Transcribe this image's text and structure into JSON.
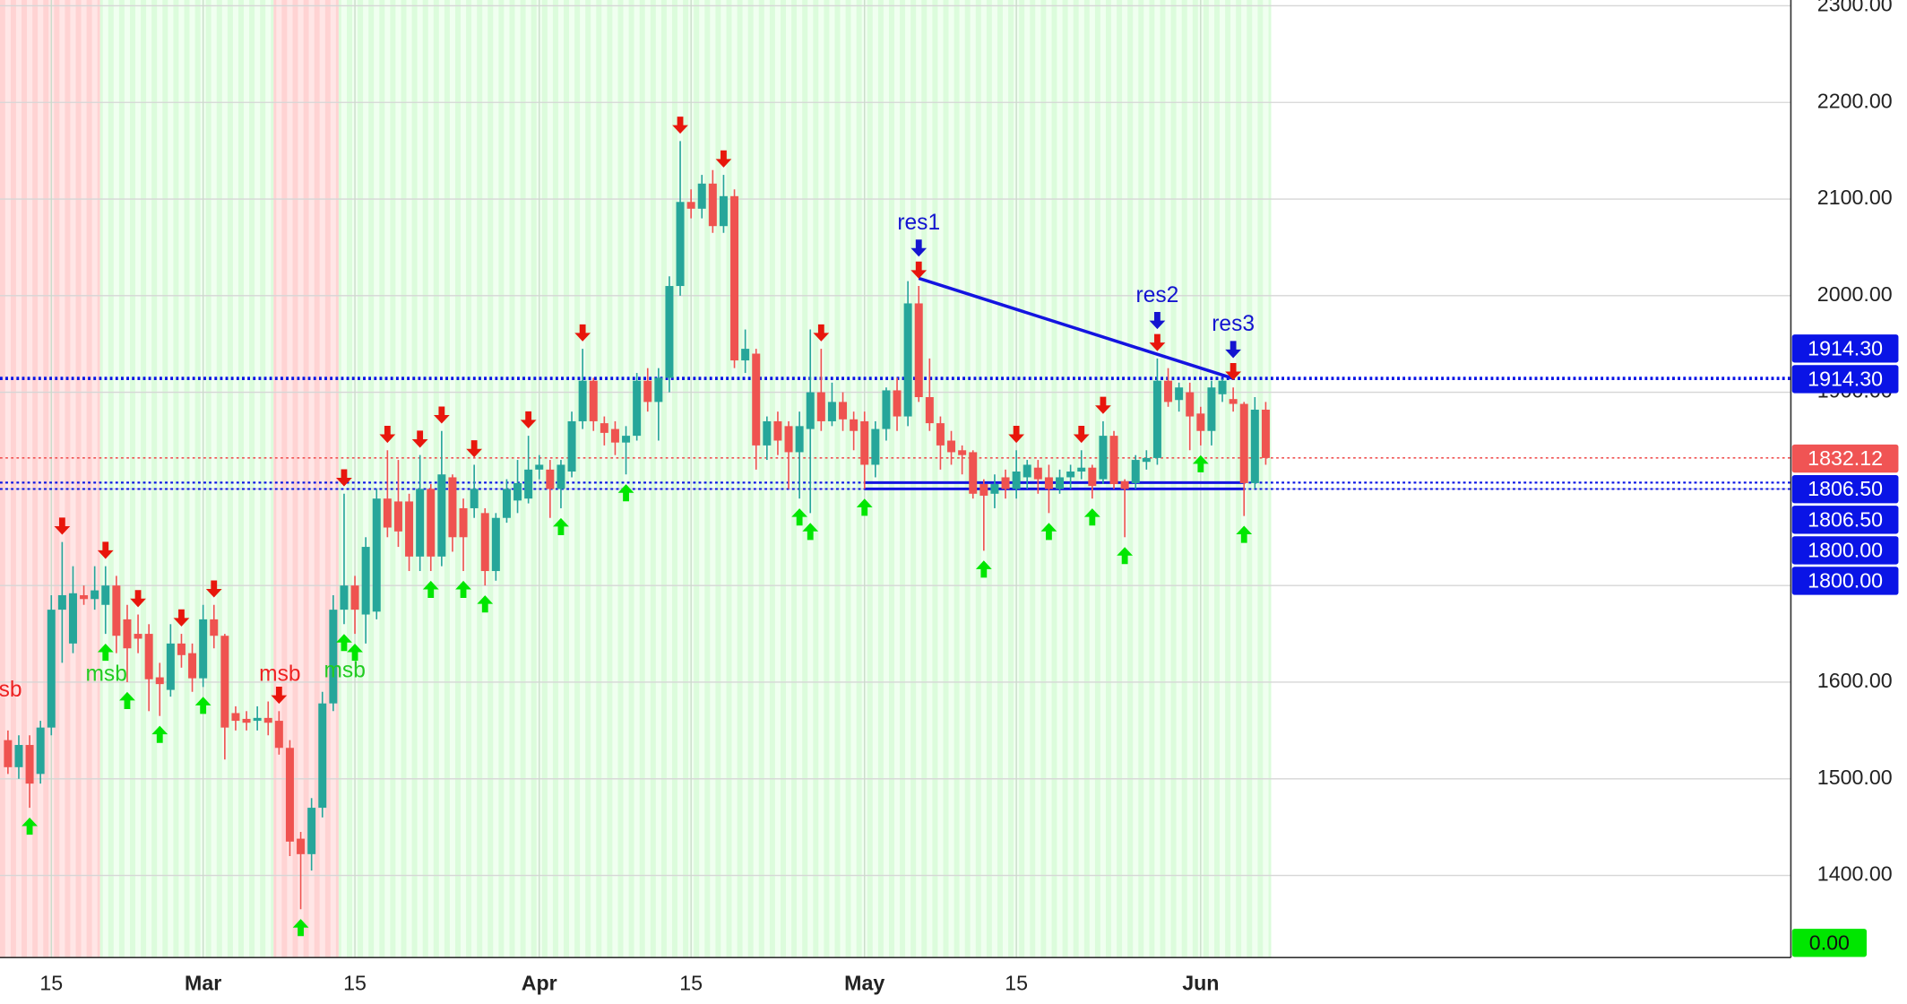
{
  "chart_data": {
    "type": "candlestick",
    "up_color": "#26a69a",
    "down_color": "#ef5350",
    "categories": [
      null,
      null,
      null,
      null,
      "15",
      null,
      null,
      null,
      null,
      null,
      null,
      null,
      null,
      null,
      null,
      null,
      null,
      null,
      "Mar",
      null,
      null,
      null,
      null,
      null,
      null,
      null,
      null,
      null,
      null,
      null,
      null,
      null,
      "15",
      null,
      null,
      null,
      null,
      null,
      null,
      null,
      null,
      null,
      null,
      null,
      null,
      null,
      null,
      null,
      null,
      "Apr",
      null,
      null,
      null,
      null,
      null,
      null,
      null,
      null,
      null,
      null,
      null,
      null,
      null,
      "15",
      null,
      null,
      null,
      null,
      null,
      null,
      null,
      null,
      null,
      null,
      null,
      null,
      null,
      null,
      null,
      "May",
      null,
      null,
      null,
      null,
      null,
      null,
      null,
      null,
      null,
      null,
      null,
      null,
      null,
      "15",
      null,
      null,
      null,
      null,
      null,
      null,
      null,
      null,
      null,
      null,
      null,
      null,
      null,
      null,
      null,
      null,
      "Jun",
      null,
      null,
      null,
      null,
      null,
      null
    ],
    "open": [
      1540,
      1512,
      1535,
      1505,
      1553,
      1675,
      1640,
      1690,
      1686,
      1680,
      1700,
      1665,
      1650,
      1650,
      1605,
      1592,
      1640,
      1630,
      1604,
      1665,
      1648,
      1568,
      1562,
      1560,
      1563,
      1560,
      1532,
      1438,
      1422,
      1470,
      1578,
      1675,
      1700,
      1670,
      1673,
      1790,
      1787,
      1787,
      1730,
      1800,
      1730,
      1812,
      1780,
      1780,
      1775,
      1715,
      1770,
      1788,
      1790,
      1820,
      1820,
      1800,
      1818,
      1870,
      1912,
      1868,
      1862,
      1848,
      1855,
      1912,
      1890,
      1915,
      2010,
      2097,
      2090,
      2116,
      2072,
      2103,
      1933,
      1940,
      1845,
      1870,
      1865,
      1838,
      1862,
      1900,
      1870,
      1890,
      1872,
      1870,
      1825,
      1862,
      1902,
      1875,
      1992,
      1895,
      1868,
      1850,
      1840,
      1838,
      1805,
      1795,
      1812,
      1800,
      1812,
      1822,
      1812,
      1800,
      1812,
      1818,
      1822,
      1810,
      1855,
      1808,
      1806,
      1828,
      1832,
      1912,
      1892,
      1900,
      1878,
      1860,
      1898,
      1893,
      1888,
      1806,
      1882
    ],
    "high": [
      1550,
      1545,
      1545,
      1560,
      1690,
      1745,
      1720,
      1700,
      1720,
      1720,
      1710,
      1680,
      1670,
      1660,
      1620,
      1660,
      1650,
      1640,
      1680,
      1680,
      1650,
      1575,
      1570,
      1575,
      1580,
      1570,
      1540,
      1445,
      1480,
      1590,
      1690,
      1795,
      1710,
      1750,
      1800,
      1840,
      1830,
      1795,
      1835,
      1805,
      1860,
      1815,
      1790,
      1825,
      1780,
      1775,
      1810,
      1830,
      1855,
      1835,
      1830,
      1830,
      1880,
      1945,
      1915,
      1875,
      1870,
      1865,
      1920,
      1925,
      1925,
      2020,
      2160,
      2110,
      2125,
      2130,
      2125,
      2110,
      1965,
      1945,
      1875,
      1880,
      1870,
      1880,
      1965,
      1945,
      1910,
      1900,
      1880,
      1880,
      1870,
      1905,
      1915,
      2015,
      2010,
      1935,
      1875,
      1860,
      1845,
      1840,
      1810,
      1815,
      1820,
      1840,
      1830,
      1830,
      1825,
      1820,
      1825,
      1840,
      1825,
      1870,
      1860,
      1810,
      1835,
      1840,
      1935,
      1925,
      1910,
      1910,
      1885,
      1912,
      1914,
      1905,
      1890,
      1895,
      1890
    ],
    "low": [
      1505,
      1500,
      1470,
      1495,
      1545,
      1620,
      1630,
      1680,
      1675,
      1650,
      1630,
      1600,
      1630,
      1570,
      1565,
      1585,
      1615,
      1590,
      1595,
      1635,
      1520,
      1550,
      1550,
      1550,
      1545,
      1525,
      1420,
      1365,
      1405,
      1460,
      1570,
      1660,
      1650,
      1640,
      1665,
      1750,
      1740,
      1715,
      1715,
      1715,
      1720,
      1735,
      1715,
      1770,
      1700,
      1705,
      1765,
      1775,
      1785,
      1810,
      1770,
      1780,
      1812,
      1862,
      1860,
      1845,
      1835,
      1815,
      1850,
      1880,
      1850,
      1900,
      2000,
      2080,
      2080,
      2065,
      2065,
      1925,
      1920,
      1820,
      1830,
      1835,
      1800,
      1790,
      1775,
      1860,
      1865,
      1860,
      1840,
      1800,
      1812,
      1850,
      1860,
      1865,
      1890,
      1860,
      1820,
      1825,
      1815,
      1790,
      1736,
      1780,
      1790,
      1790,
      1800,
      1795,
      1775,
      1795,
      1800,
      1810,
      1790,
      1805,
      1800,
      1750,
      1800,
      1820,
      1825,
      1885,
      1880,
      1840,
      1845,
      1845,
      1890,
      1880,
      1772,
      1800,
      1825
    ],
    "close": [
      1512,
      1535,
      1495,
      1553,
      1675,
      1690,
      1692,
      1686,
      1695,
      1700,
      1648,
      1635,
      1645,
      1603,
      1598,
      1640,
      1628,
      1604,
      1665,
      1648,
      1553,
      1560,
      1558,
      1563,
      1558,
      1532,
      1435,
      1422,
      1470,
      1578,
      1675,
      1700,
      1675,
      1740,
      1790,
      1760,
      1756,
      1730,
      1800,
      1730,
      1815,
      1750,
      1750,
      1800,
      1715,
      1770,
      1800,
      1806,
      1820,
      1825,
      1800,
      1825,
      1870,
      1912,
      1870,
      1858,
      1848,
      1855,
      1912,
      1890,
      1915,
      2010,
      2097,
      2090,
      2116,
      2072,
      2103,
      1933,
      1945,
      1845,
      1870,
      1850,
      1838,
      1865,
      1900,
      1870,
      1890,
      1872,
      1860,
      1825,
      1862,
      1902,
      1875,
      1992,
      1895,
      1868,
      1845,
      1838,
      1835,
      1795,
      1793,
      1805,
      1800,
      1818,
      1825,
      1810,
      1800,
      1812,
      1818,
      1822,
      1803,
      1855,
      1805,
      1800,
      1830,
      1832,
      1912,
      1890,
      1905,
      1875,
      1860,
      1905,
      1912,
      1888,
      1806,
      1882,
      1832
    ],
    "ylim": [
      1315,
      2306
    ],
    "yticks": [
      {
        "value": 1400,
        "label": "1400.00"
      },
      {
        "value": 1500,
        "label": "1500.00"
      },
      {
        "value": 1600,
        "label": "1600.00"
      },
      {
        "value": 1700,
        "label": "1700.00"
      },
      {
        "value": 1800,
        "label": "1800.00"
      },
      {
        "value": 1900,
        "label": "1900.00"
      },
      {
        "value": 2000,
        "label": "2000.00"
      },
      {
        "value": 2100,
        "label": "2100.00"
      },
      {
        "value": 2200,
        "label": "2200.00"
      },
      {
        "value": 2300,
        "label": "2300.00"
      }
    ],
    "grid": true,
    "price_labels": [
      {
        "value": 1914.3,
        "label": "1914.30",
        "color": "#0a14e6"
      },
      {
        "value": 1914.3,
        "label": "1914.30",
        "color": "#0a14e6"
      },
      {
        "value": 1832.12,
        "label": "1832.12",
        "color": "#f05454"
      },
      {
        "value": 1806.5,
        "label": "1806.50",
        "color": "#0a14e6"
      },
      {
        "value": 1806.5,
        "label": "1806.50",
        "color": "#0a14e6"
      },
      {
        "value": 1800,
        "label": "1800.00",
        "color": "#0a14e6"
      },
      {
        "value": 1800,
        "label": "1800.00",
        "color": "#0a14e6"
      },
      {
        "value": 0,
        "label": "0.00",
        "color": "#00e600"
      }
    ],
    "trend_line": {
      "color": "#1414e0",
      "values": [
        2018,
        1914.3
      ]
    },
    "annotations": [
      {
        "text": "res1",
        "color": "#1414d0"
      },
      {
        "text": "res2",
        "color": "#1414d0"
      },
      {
        "text": "res3",
        "color": "#1414d0"
      },
      {
        "text": "msb",
        "color": "#22cc22"
      },
      {
        "text": "msb",
        "color": "#ee2222"
      },
      {
        "text": "msb",
        "color": "#22cc22"
      },
      {
        "text": "sb",
        "color": "#ee2222"
      }
    ]
  }
}
